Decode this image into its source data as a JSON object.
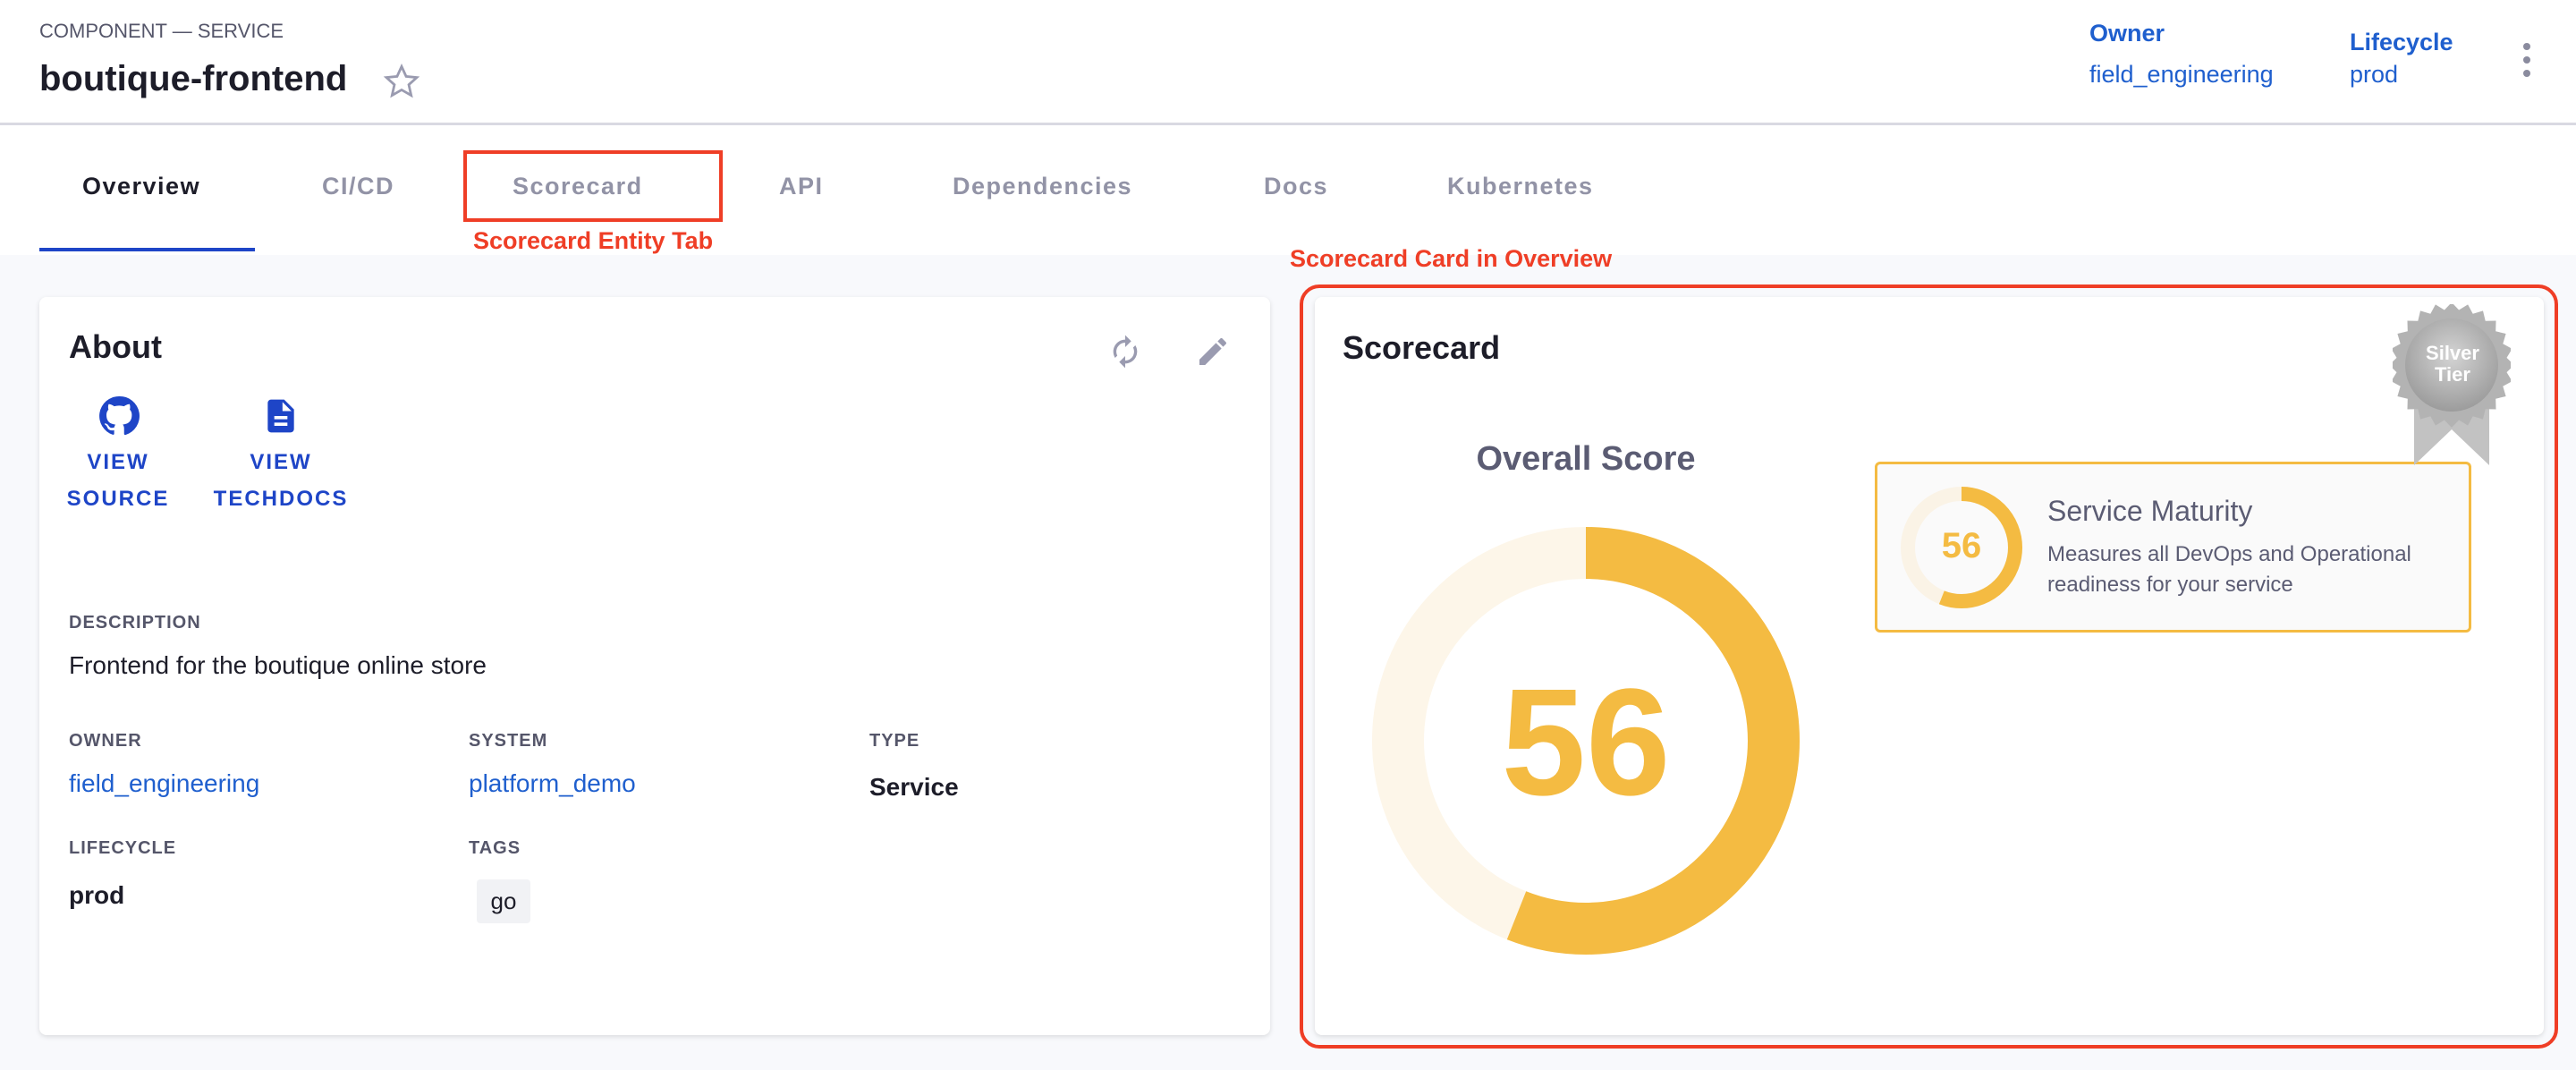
{
  "header": {
    "kind": "COMPONENT — SERVICE",
    "title": "boutique-frontend",
    "owner_label": "Owner",
    "owner_value": "field_engineering",
    "lifecycle_label": "Lifecycle",
    "lifecycle_value": "prod"
  },
  "tabs": [
    {
      "label": "Overview",
      "active": true
    },
    {
      "label": "CI/CD"
    },
    {
      "label": "Scorecard"
    },
    {
      "label": "API"
    },
    {
      "label": "Dependencies"
    },
    {
      "label": "Docs"
    },
    {
      "label": "Kubernetes"
    }
  ],
  "annotations": {
    "tab": "Scorecard Entity Tab",
    "card": "Scorecard Card in Overview",
    "color": "#ef3e26"
  },
  "about": {
    "title": "About",
    "links": [
      {
        "line1": "VIEW",
        "line2": "SOURCE",
        "icon": "github-icon"
      },
      {
        "line1": "VIEW",
        "line2": "TECHDOCS",
        "icon": "document-icon"
      }
    ],
    "description_label": "DESCRIPTION",
    "description": "Frontend for the boutique online store",
    "owner_label": "OWNER",
    "owner": "field_engineering",
    "system_label": "SYSTEM",
    "system": "platform_demo",
    "type_label": "TYPE",
    "type": "Service",
    "lifecycle_label": "LIFECYCLE",
    "lifecycle": "prod",
    "tags_label": "TAGS",
    "tags": [
      "go"
    ]
  },
  "scorecard": {
    "title": "Scorecard",
    "badge_line1": "Silver",
    "badge_line2": "Tier",
    "overall_label": "Overall Score",
    "overall_score": "56",
    "overall_percent": 56,
    "check": {
      "score": "56",
      "percent": 56,
      "name": "Service Maturity",
      "description_line1": "Measures all DevOps and Operational",
      "description_line2": "readiness for your service"
    },
    "accent": "#f4bb42",
    "track": "#fdf6e9"
  }
}
